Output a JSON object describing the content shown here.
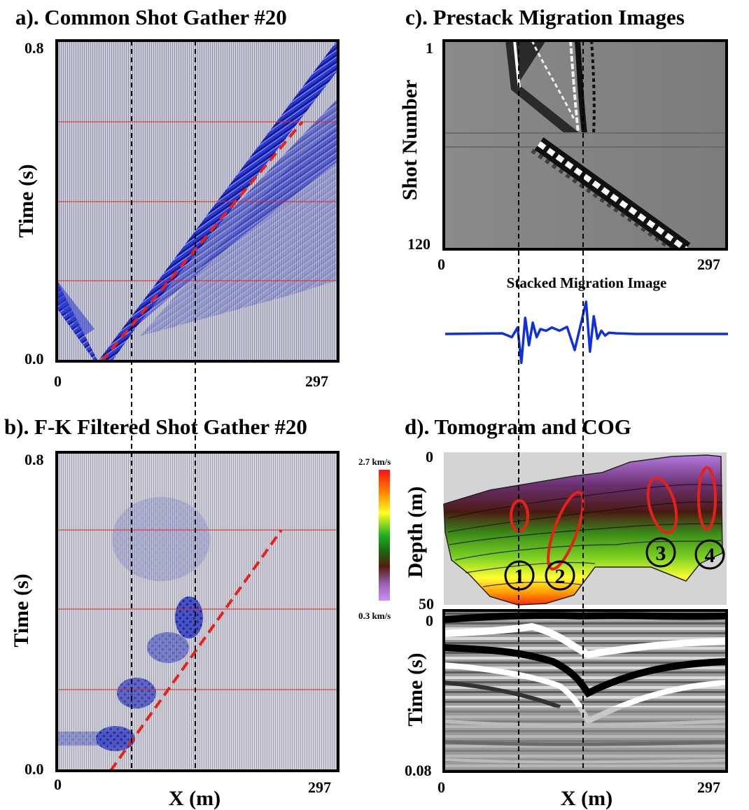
{
  "chart_data": [
    {
      "type": "heatmap",
      "panel": "a",
      "title": "a). Common Shot Gather #20",
      "ylabel": "Time (s)",
      "xlabel": "",
      "x_ticks": [
        "0",
        "297"
      ],
      "y_ticks": [
        "0.8",
        "0.0"
      ],
      "xlim": [
        0,
        297
      ],
      "ylim": [
        0.0,
        0.8
      ],
      "red_dashed_line": {
        "x": [
          53,
          252
        ],
        "y": [
          0.0,
          0.6
        ]
      },
      "black_dashed_x": [
        88,
        159
      ],
      "red_horizontal_y": [
        0.6,
        0.4,
        0.2
      ]
    },
    {
      "type": "heatmap",
      "panel": "b",
      "title": "b). F-K Filtered Shot Gather #20",
      "ylabel": "Time (s)",
      "xlabel": "X (m)",
      "x_ticks": [
        "0",
        "297"
      ],
      "y_ticks": [
        "0.8",
        "0.0"
      ],
      "xlim": [
        0,
        297
      ],
      "ylim": [
        0.0,
        0.8
      ],
      "red_dashed_line": {
        "x": [
          58,
          252
        ],
        "y": [
          0.0,
          0.6
        ]
      },
      "black_dashed_x": [
        82,
        155
      ],
      "red_horizontal_y": [
        0.6,
        0.4,
        0.2
      ]
    },
    {
      "type": "heatmap",
      "panel": "c",
      "title": "c). Prestack Migration Images",
      "ylabel": "Shot Number",
      "x_ticks": [
        "0",
        "297"
      ],
      "y_ticks": [
        "1",
        "120"
      ],
      "xlim": [
        0,
        297
      ],
      "ylim": [
        1,
        120
      ],
      "black_dashed_x": [
        82,
        155
      ]
    },
    {
      "type": "line",
      "panel": "c-stack",
      "title": "Stacked Migration Image",
      "x": [
        0,
        60,
        70,
        76,
        80,
        84,
        88,
        92,
        96,
        100,
        106,
        112,
        120,
        128,
        136,
        144,
        148,
        152,
        156,
        160,
        164,
        168,
        172,
        180,
        200,
        297
      ],
      "y": [
        0,
        0.02,
        -0.1,
        0.2,
        -0.9,
        0.5,
        -0.35,
        0.35,
        -0.1,
        0.15,
        0.1,
        0.2,
        0.1,
        0.22,
        -0.5,
        0.5,
        1.0,
        -0.55,
        0.55,
        -0.15,
        0.1,
        -0.05,
        0.04,
        0.02,
        0,
        0
      ],
      "ylim": [
        -1,
        1
      ]
    },
    {
      "type": "heatmap",
      "panel": "d",
      "title": "d).     Tomogram and COG",
      "ylabel": "Depth (m)",
      "y_ticks": [
        "0",
        "50"
      ],
      "colorbar": {
        "max_label": "2.7 km/s",
        "min_label": "0.3 km/s"
      },
      "annotations": [
        "1",
        "2",
        "3",
        "4"
      ]
    },
    {
      "type": "heatmap",
      "panel": "d-cog",
      "ylabel": "Time (s)",
      "xlabel": "X (m)",
      "x_ticks": [
        "0",
        "297"
      ],
      "y_ticks": [
        "0",
        "0.08"
      ],
      "xlim": [
        0,
        297
      ],
      "ylim": [
        0,
        0.08
      ]
    }
  ],
  "colors": {
    "wiggle_blue": "#1a23d6",
    "red": "#e8201a",
    "grey_bg": "#c9c9c9",
    "line_blue": "#1030e0"
  }
}
